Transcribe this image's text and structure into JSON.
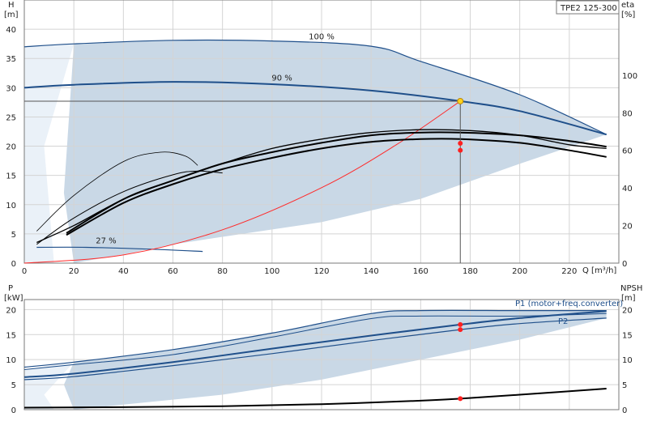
{
  "chart_data": [
    {
      "type": "line",
      "model": "TPE2 125-300",
      "xlabel": "Q [m³/h]",
      "y_left_label": "H",
      "y_left_unit": "[m]",
      "y_right_label": "eta",
      "y_right_unit": "[%]",
      "xlim": [
        0,
        240
      ],
      "ylim_left": [
        0,
        45
      ],
      "ylim_right": [
        0,
        140
      ],
      "x_ticks": [
        0,
        20,
        40,
        60,
        80,
        100,
        120,
        140,
        160,
        180,
        200,
        220
      ],
      "y_left_ticks": [
        0,
        5,
        10,
        15,
        20,
        25,
        30,
        35,
        40
      ],
      "y_right_ticks": [
        0,
        20,
        40,
        60,
        80,
        100
      ],
      "grid": true,
      "annotations": [
        {
          "text": "100 %",
          "x": 120,
          "y": 38.3
        },
        {
          "text": "90 %",
          "x": 104,
          "y": 31.2
        },
        {
          "text": "27 %",
          "x": 33,
          "y": 3.4
        }
      ],
      "series": [
        {
          "id": "H100",
          "points": [
            [
              0,
              37
            ],
            [
              20,
              37.5
            ],
            [
              60,
              38.1
            ],
            [
              100,
              38
            ],
            [
              140,
              37.1
            ],
            [
              160,
              34.5
            ],
            [
              200,
              28.8
            ],
            [
              235,
              22
            ]
          ]
        },
        {
          "id": "H90",
          "points": [
            [
              0,
              30
            ],
            [
              20,
              30.5
            ],
            [
              60,
              31
            ],
            [
              100,
              30.6
            ],
            [
              140,
              29.5
            ],
            [
              176,
              27.7
            ],
            [
              200,
              26
            ],
            [
              235,
              22
            ]
          ]
        },
        {
          "id": "H27",
          "points": [
            [
              5,
              2.7
            ],
            [
              25,
              2.7
            ],
            [
              50,
              2.4
            ],
            [
              72,
              2
            ]
          ]
        },
        {
          "id": "system_curve",
          "points": [
            [
              0,
              0
            ],
            [
              40,
              1.4
            ],
            [
              80,
              5.7
            ],
            [
              120,
              12.9
            ],
            [
              150,
              20.2
            ],
            [
              176,
              27.7
            ]
          ]
        },
        {
          "id": "eta_max",
          "points": [
            [
              5,
              11
            ],
            [
              20,
              20
            ],
            [
              40,
              34
            ],
            [
              60,
              44
            ],
            [
              80,
              53
            ],
            [
              100,
              61
            ],
            [
              120,
              66
            ],
            [
              140,
              69.5
            ],
            [
              160,
              71
            ],
            [
              180,
              70.5
            ],
            [
              200,
              68
            ],
            [
              220,
              63
            ],
            [
              235,
              61
            ]
          ]
        },
        {
          "id": "eta_100",
          "points": [
            [
              17,
              16
            ],
            [
              40,
              34
            ],
            [
              60,
              44
            ],
            [
              80,
              53
            ],
            [
              100,
              59
            ],
            [
              120,
              64
            ],
            [
              140,
              68
            ],
            [
              160,
              69.5
            ],
            [
              176,
              69.5
            ],
            [
              200,
              68
            ],
            [
              220,
              65
            ],
            [
              235,
              62
            ]
          ]
        },
        {
          "id": "eta_90",
          "points": [
            [
              17,
              15
            ],
            [
              40,
              32
            ],
            [
              60,
              42
            ],
            [
              80,
              50
            ],
            [
              100,
              56
            ],
            [
              120,
              61
            ],
            [
              140,
              64.5
            ],
            [
              160,
              66
            ],
            [
              176,
              66
            ],
            [
              200,
              64
            ],
            [
              220,
              60
            ],
            [
              235,
              56.5
            ]
          ]
        },
        {
          "id": "eta_70",
          "points": [
            [
              5,
              10
            ],
            [
              20,
              24
            ],
            [
              40,
              38
            ],
            [
              60,
              47
            ],
            [
              70,
              49
            ],
            [
              80,
              48
            ]
          ]
        },
        {
          "id": "eta_50",
          "points": [
            [
              5,
              17
            ],
            [
              20,
              36
            ],
            [
              40,
              54
            ],
            [
              55,
              59
            ],
            [
              65,
              57
            ],
            [
              70,
              52
            ]
          ]
        }
      ],
      "duty_point": {
        "Q": 176,
        "H": 27.7
      },
      "operating_markers": [
        [
          176,
          20.5
        ],
        [
          176,
          19.3
        ]
      ]
    },
    {
      "type": "line",
      "xlabel": "",
      "y_left_label": "P",
      "y_left_unit": "[kW]",
      "y_right_label": "NPSH",
      "y_right_unit": "[m]",
      "xlim": [
        0,
        240
      ],
      "ylim": [
        0,
        22
      ],
      "y_left_ticks": [
        0,
        5,
        10,
        15,
        20
      ],
      "y_right_ticks": [
        0,
        5,
        10,
        15,
        20
      ],
      "grid": true,
      "series": [
        {
          "name": "P1 (motor+freq.converter)",
          "points": [
            [
              0,
              8.5
            ],
            [
              20,
              9.5
            ],
            [
              60,
              12
            ],
            [
              100,
              15.3
            ],
            [
              140,
              19.2
            ],
            [
              160,
              19.8
            ],
            [
              200,
              19.8
            ],
            [
              235,
              19.8
            ]
          ]
        },
        {
          "id": "P1_mid",
          "points": [
            [
              0,
              8
            ],
            [
              20,
              9
            ],
            [
              60,
              11
            ],
            [
              100,
              14.5
            ],
            [
              140,
              18.2
            ],
            [
              160,
              18.7
            ],
            [
              200,
              18.7
            ],
            [
              235,
              19.2
            ]
          ]
        },
        {
          "id": "P_duty_1",
          "points": [
            [
              0,
              6.5
            ],
            [
              20,
              7.2
            ],
            [
              60,
              9.5
            ],
            [
              100,
              12.2
            ],
            [
              140,
              14.8
            ],
            [
              176,
              17
            ],
            [
              200,
              18.3
            ],
            [
              235,
              19.7
            ]
          ]
        },
        {
          "id": "P_duty_2",
          "points": [
            [
              0,
              6
            ],
            [
              20,
              6.6
            ],
            [
              60,
              8.8
            ],
            [
              100,
              11.2
            ],
            [
              140,
              13.8
            ],
            [
              176,
              16
            ],
            [
              200,
              17.2
            ],
            [
              235,
              18.3
            ]
          ]
        },
        {
          "name": "P2",
          "points": []
        },
        {
          "id": "NPSH",
          "points": [
            [
              0,
              0.4
            ],
            [
              40,
              0.5
            ],
            [
              80,
              0.7
            ],
            [
              120,
              1.1
            ],
            [
              160,
              1.8
            ],
            [
              176,
              2.2
            ],
            [
              200,
              3
            ],
            [
              235,
              4.2
            ]
          ]
        }
      ],
      "operating_markers": [
        [
          176,
          17
        ],
        [
          176,
          16
        ],
        [
          176,
          2.2
        ]
      ]
    }
  ]
}
